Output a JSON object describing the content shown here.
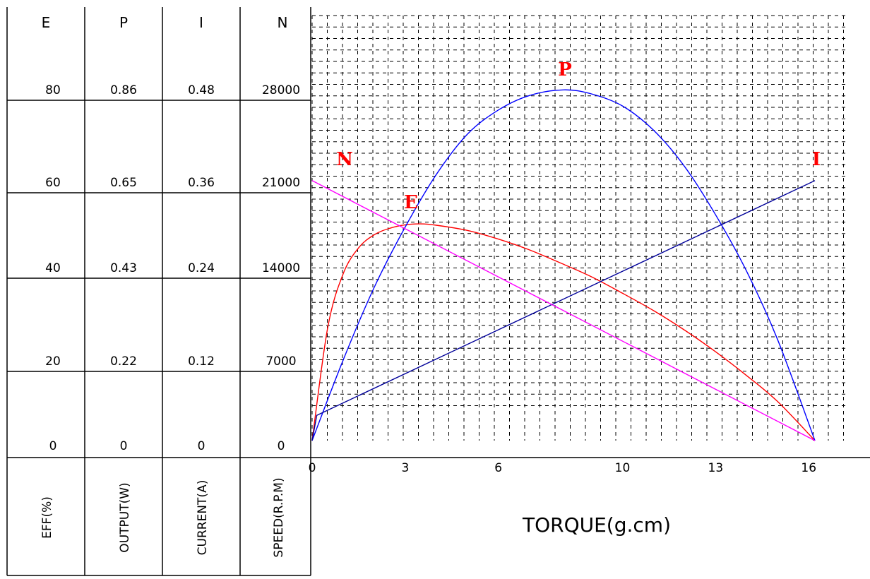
{
  "chart_data": {
    "type": "line",
    "xlabel": "TORQUE(g.cm)",
    "x_ticks": [
      "0",
      "3",
      "6",
      "10",
      "13",
      "16"
    ],
    "x_tick_values": [
      0,
      3,
      6,
      10,
      13,
      16
    ],
    "xlim": [
      0,
      17.5
    ],
    "grid": true,
    "columns": [
      {
        "header": "E",
        "label": "EFF(%)",
        "ticks": [
          "80",
          "60",
          "40",
          "20",
          "0"
        ]
      },
      {
        "header": "P",
        "label": "OUTPUT(W)",
        "ticks": [
          "0.86",
          "0.65",
          "0.43",
          "0.22",
          "0"
        ]
      },
      {
        "header": "I",
        "label": "CURRENT(A)",
        "ticks": [
          "0.48",
          "0.36",
          "0.24",
          "0.12",
          "0"
        ]
      },
      {
        "header": "N",
        "label": "SPEED(R.P.M)",
        "ticks": [
          "28000",
          "21000",
          "14000",
          "7000",
          "0"
        ]
      }
    ],
    "series": [
      {
        "name": "E",
        "color": "#ff0000",
        "ylim": [
          0,
          80
        ],
        "points": [
          [
            0,
            0
          ],
          [
            0.5,
            26
          ],
          [
            1,
            38.5
          ],
          [
            1.5,
            44.5
          ],
          [
            2,
            47.5
          ],
          [
            2.5,
            49
          ],
          [
            3,
            49.8
          ],
          [
            3.5,
            50
          ],
          [
            4,
            49.7
          ],
          [
            5,
            48.5
          ],
          [
            6,
            46.5
          ],
          [
            7,
            44
          ],
          [
            8,
            41
          ],
          [
            9,
            37.8
          ],
          [
            10,
            34
          ],
          [
            11,
            30
          ],
          [
            12,
            25.5
          ],
          [
            13,
            20.5
          ],
          [
            14,
            15
          ],
          [
            15,
            9
          ],
          [
            16.2,
            0
          ]
        ]
      },
      {
        "name": "P",
        "color": "#0000ff",
        "ylim": [
          0,
          0.86
        ],
        "points": [
          [
            0,
            0
          ],
          [
            1,
            0.2
          ],
          [
            2,
            0.38
          ],
          [
            3,
            0.53
          ],
          [
            4,
            0.66
          ],
          [
            5,
            0.76
          ],
          [
            6,
            0.82
          ],
          [
            7,
            0.856
          ],
          [
            8.1,
            0.87
          ],
          [
            9,
            0.86
          ],
          [
            10,
            0.83
          ],
          [
            11,
            0.77
          ],
          [
            12,
            0.68
          ],
          [
            13,
            0.56
          ],
          [
            14,
            0.42
          ],
          [
            15,
            0.25
          ],
          [
            16.2,
            0
          ]
        ]
      },
      {
        "name": "I",
        "color": "#000099",
        "ylim": [
          0,
          0.48
        ],
        "points": [
          [
            0,
            0
          ],
          [
            0.15,
            0.035
          ],
          [
            16.2,
            0.36
          ]
        ]
      },
      {
        "name": "N",
        "color": "#ff00ff",
        "ylim": [
          0,
          28000
        ],
        "points": [
          [
            0,
            21000
          ],
          [
            16.2,
            0
          ]
        ]
      }
    ]
  }
}
